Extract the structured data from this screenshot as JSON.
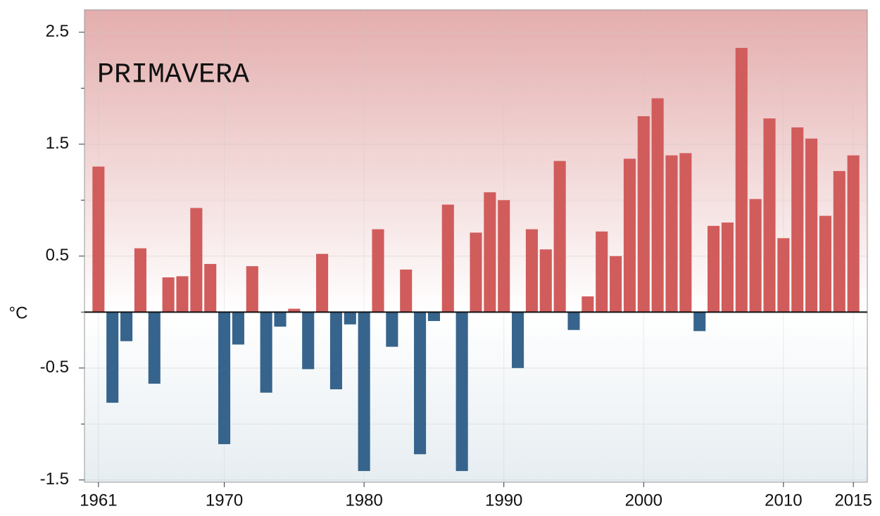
{
  "chart_data": {
    "type": "bar",
    "annotation": "PRIMAVERA",
    "y_label": "°C",
    "x": [
      1961,
      1962,
      1963,
      1964,
      1965,
      1966,
      1967,
      1968,
      1969,
      1970,
      1971,
      1972,
      1973,
      1974,
      1975,
      1976,
      1977,
      1978,
      1979,
      1980,
      1981,
      1982,
      1983,
      1984,
      1985,
      1986,
      1987,
      1988,
      1989,
      1990,
      1991,
      1992,
      1993,
      1994,
      1995,
      1996,
      1997,
      1998,
      1999,
      2000,
      2001,
      2002,
      2003,
      2004,
      2005,
      2006,
      2007,
      2008,
      2009,
      2010,
      2011,
      2012,
      2013,
      2014,
      2015
    ],
    "values": [
      1.3,
      -0.81,
      -0.26,
      0.57,
      -0.64,
      0.31,
      0.32,
      0.93,
      0.43,
      -1.18,
      -0.29,
      0.41,
      -0.72,
      -0.13,
      0.03,
      -0.51,
      0.52,
      -0.69,
      -0.11,
      -1.42,
      0.74,
      -0.31,
      0.38,
      -1.27,
      -0.08,
      0.96,
      -1.42,
      0.71,
      1.07,
      1.0,
      -0.5,
      0.74,
      0.56,
      1.35,
      -0.16,
      0.14,
      0.72,
      0.5,
      1.37,
      1.75,
      1.91,
      1.4,
      1.42,
      -0.17,
      0.77,
      0.8,
      2.36,
      1.01,
      1.73,
      0.66,
      1.65,
      1.55,
      0.86,
      1.26,
      1.4
    ],
    "positive_color": "#d15c5c",
    "negative_color": "#36648c",
    "xlim": [
      1960,
      2016
    ],
    "xticks": [
      1961,
      1970,
      1980,
      1990,
      2000,
      2010,
      2015
    ],
    "ylim": [
      -1.52,
      2.7
    ],
    "yticks": [
      -1.5,
      -0.5,
      0.5,
      1.5,
      2.5
    ],
    "minor_yticks": [
      -1,
      0,
      1,
      2
    ],
    "grid": true
  }
}
